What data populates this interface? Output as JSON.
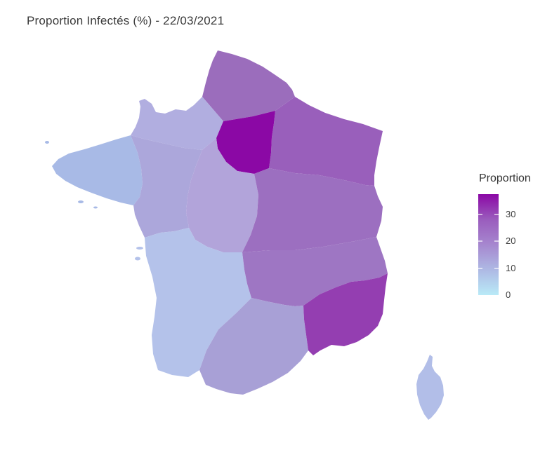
{
  "title": "Proportion Infectés (%) - 22/03/2021",
  "legend": {
    "title": "Proportion",
    "domain_min": 0,
    "domain_max": 37.5,
    "ticks": [
      30,
      20,
      10,
      0
    ],
    "gradient_stops": [
      "#8b08a5",
      "#9a5cbd",
      "#a687cf",
      "#aeb9e4",
      "#b9eaf7"
    ]
  },
  "colors": {
    "background": "#ffffff",
    "title_text": "#3a3a3a",
    "legend_text": "#3f3f3f"
  },
  "chart_data": {
    "type": "choropleth-map",
    "map": "France - régions métropolitaines",
    "metric": "Proportion Infectés (%)",
    "date": "22/03/2021",
    "color_scale": {
      "low_color": "#b9eaf7",
      "high_color": "#8b08a5",
      "low_value": 0,
      "high_value": 37.5
    },
    "legend_position": "right",
    "regions": [
      {
        "id": "hauts-de-france",
        "name": "Hauts-de-France",
        "color": "#9b6dbc",
        "value_est": 23
      },
      {
        "id": "normandie",
        "name": "Normandie",
        "color": "#b1aee0",
        "value_est": 12
      },
      {
        "id": "ile-de-france",
        "name": "Île-de-France",
        "color": "#8b08a5",
        "value_est": 37
      },
      {
        "id": "grand-est",
        "name": "Grand Est",
        "color": "#995fbb",
        "value_est": 25
      },
      {
        "id": "bretagne",
        "name": "Bretagne",
        "color": "#a8bae6",
        "value_est": 10
      },
      {
        "id": "pays-de-la-loire",
        "name": "Pays de la Loire",
        "color": "#aca7db",
        "value_est": 13
      },
      {
        "id": "centre-val-de-loire",
        "name": "Centre-Val de Loire",
        "color": "#b2a4da",
        "value_est": 14
      },
      {
        "id": "bourgogne-franche-comte",
        "name": "Bourgogne-Franche-Comté",
        "color": "#9c6fc0",
        "value_est": 23
      },
      {
        "id": "nouvelle-aquitaine",
        "name": "Nouvelle-Aquitaine",
        "color": "#b4c2ea",
        "value_est": 9
      },
      {
        "id": "auvergne-rhone-alpes",
        "name": "Auvergne-Rhône-Alpes",
        "color": "#9e76c3",
        "value_est": 22
      },
      {
        "id": "occitanie",
        "name": "Occitanie",
        "color": "#a8a0d6",
        "value_est": 15
      },
      {
        "id": "provence-alpes-cote-d-azur",
        "name": "Provence-Alpes-Côte d'Azur",
        "color": "#943eb1",
        "value_est": 29
      },
      {
        "id": "corse",
        "name": "Corse",
        "color": "#b2bee8",
        "value_est": 10
      }
    ]
  }
}
